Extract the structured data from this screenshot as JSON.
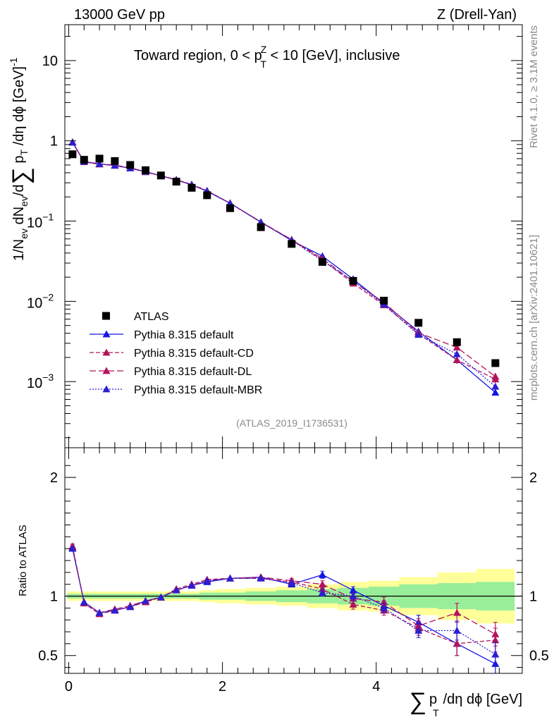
{
  "header": {
    "energy": "13000 GeV pp",
    "process": "Z (Drell-Yan)"
  },
  "side_labels": {
    "rivet": "Rivet 4.1.0, ≥ 3.1M events",
    "source": "mcplots.cern.ch [arXiv:2401.10621]"
  },
  "chart_data": {
    "type": "line",
    "title": "Toward region, 0 < pTZ < 10 [GeV], inclusive",
    "title_parts": [
      "Toward region, 0 < p",
      "Z",
      "T",
      " < 10 [GeV], inclusive"
    ],
    "analysis_label": "(ATLAS_2019_I1736531)",
    "xlabel": "∑ pT /dη dϕ [GeV]",
    "xlabel_parts": [
      "∑",
      "p",
      "T",
      "/dη dϕ [GeV]"
    ],
    "ylabel": "1/Nev dNev/d∑ pT /dη dϕ [GeV]^-1",
    "ylabel_parts": [
      "1/N",
      "ev",
      " dN",
      "ev",
      "/d",
      "∑",
      " p",
      "T",
      " /dη dϕ  [GeV]",
      "-1"
    ],
    "ratio_ylabel": "Ratio to ATLAS",
    "xlim": [
      -0.05,
      5.9
    ],
    "ylim": [
      0.00015,
      28
    ],
    "ratio_ylim": [
      0.35,
      2.25
    ],
    "x_ticks": [
      0,
      2,
      4
    ],
    "x_tick_labels": [
      "0",
      "2",
      "4"
    ],
    "y_ticks": [
      {
        "value": 10,
        "base": "10",
        "exp": ""
      },
      {
        "value": 1,
        "base": "1",
        "exp": ""
      },
      {
        "value": 0.1,
        "base": "10",
        "exp": "−1"
      },
      {
        "value": 0.01,
        "base": "10",
        "exp": "−2"
      },
      {
        "value": 0.001,
        "base": "10",
        "exp": "−3"
      }
    ],
    "ratio_ticks": [
      {
        "value": 0.5,
        "label": "0.5"
      },
      {
        "value": 1,
        "label": "1"
      },
      {
        "value": 2,
        "label": "2"
      }
    ],
    "x": [
      0.05,
      0.2,
      0.4,
      0.6,
      0.8,
      1.0,
      1.2,
      1.4,
      1.6,
      1.8,
      2.1,
      2.5,
      2.9,
      3.3,
      3.7,
      4.1,
      4.55,
      5.05,
      5.55
    ],
    "bin_edges": [
      -0.02,
      0.1,
      0.3,
      0.5,
      0.7,
      0.9,
      1.1,
      1.3,
      1.5,
      1.7,
      1.9,
      2.3,
      2.7,
      3.1,
      3.5,
      3.9,
      4.3,
      4.8,
      5.3,
      5.8
    ],
    "data_series": {
      "name": "ATLAS",
      "values": [
        0.68,
        0.58,
        0.6,
        0.56,
        0.5,
        0.43,
        0.37,
        0.31,
        0.26,
        0.21,
        0.145,
        0.084,
        0.052,
        0.031,
        0.018,
        0.0102,
        0.0054,
        0.0031,
        0.0017
      ]
    },
    "band_stat": [
      0.02,
      0.02,
      0.02,
      0.02,
      0.02,
      0.02,
      0.02,
      0.02,
      0.02,
      0.03,
      0.03,
      0.04,
      0.05,
      0.06,
      0.07,
      0.08,
      0.1,
      0.11,
      0.12
    ],
    "band_total": [
      0.04,
      0.04,
      0.04,
      0.04,
      0.04,
      0.04,
      0.04,
      0.04,
      0.04,
      0.05,
      0.06,
      0.07,
      0.08,
      0.1,
      0.12,
      0.13,
      0.16,
      0.2,
      0.23
    ],
    "series": [
      {
        "name": "Pythia 8.315 default",
        "color": "#1414e6",
        "dash": "",
        "ratio": [
          1.4,
          0.95,
          0.86,
          0.88,
          0.91,
          0.96,
          0.99,
          1.05,
          1.09,
          1.12,
          1.15,
          1.16,
          1.1,
          1.18,
          1.05,
          0.92,
          0.78,
          0.6,
          0.43
        ],
        "ratio_err": [
          0.02,
          0.01,
          0.01,
          0.01,
          0.01,
          0.01,
          0.01,
          0.01,
          0.01,
          0.01,
          0.01,
          0.01,
          0.02,
          0.03,
          0.03,
          0.04,
          0.06,
          0.1,
          0.08
        ]
      },
      {
        "name": "Pythia 8.315 default-CD",
        "color": "#b3135c",
        "dash": "6,3",
        "ratio": [
          1.42,
          0.94,
          0.85,
          0.88,
          0.91,
          0.95,
          0.99,
          1.06,
          1.1,
          1.14,
          1.15,
          1.15,
          1.12,
          1.06,
          0.93,
          0.88,
          0.73,
          0.6,
          0.63
        ],
        "ratio_err": [
          0.02,
          0.01,
          0.01,
          0.01,
          0.01,
          0.01,
          0.01,
          0.01,
          0.01,
          0.01,
          0.01,
          0.01,
          0.02,
          0.03,
          0.04,
          0.04,
          0.06,
          0.1,
          0.1
        ]
      },
      {
        "name": "Pythia 8.315 default-DL",
        "color": "#b3135c",
        "dash": "9,4",
        "ratio": [
          1.41,
          0.95,
          0.86,
          0.89,
          0.92,
          0.96,
          0.99,
          1.05,
          1.09,
          1.13,
          1.15,
          1.16,
          1.13,
          1.1,
          0.98,
          0.95,
          0.75,
          0.86,
          0.68
        ],
        "ratio_err": [
          0.02,
          0.01,
          0.01,
          0.01,
          0.01,
          0.01,
          0.01,
          0.01,
          0.01,
          0.01,
          0.01,
          0.01,
          0.02,
          0.03,
          0.04,
          0.04,
          0.06,
          0.08,
          0.1
        ]
      },
      {
        "name": "Pythia 8.315 default-MBR",
        "color": "#2a1fd1",
        "dash": "2,2",
        "ratio": [
          1.4,
          0.95,
          0.86,
          0.88,
          0.91,
          0.96,
          0.99,
          1.05,
          1.09,
          1.13,
          1.15,
          1.15,
          1.11,
          1.03,
          1.0,
          0.9,
          0.71,
          0.71,
          0.51
        ],
        "ratio_err": [
          0.02,
          0.01,
          0.01,
          0.01,
          0.01,
          0.01,
          0.01,
          0.01,
          0.01,
          0.01,
          0.01,
          0.01,
          0.02,
          0.03,
          0.04,
          0.04,
          0.06,
          0.08,
          0.1
        ]
      }
    ],
    "colors": {
      "data": "#000000",
      "band_stat": "#99ee99",
      "band_total": "#ffff99",
      "label_grey": "#8a8a8a"
    }
  }
}
